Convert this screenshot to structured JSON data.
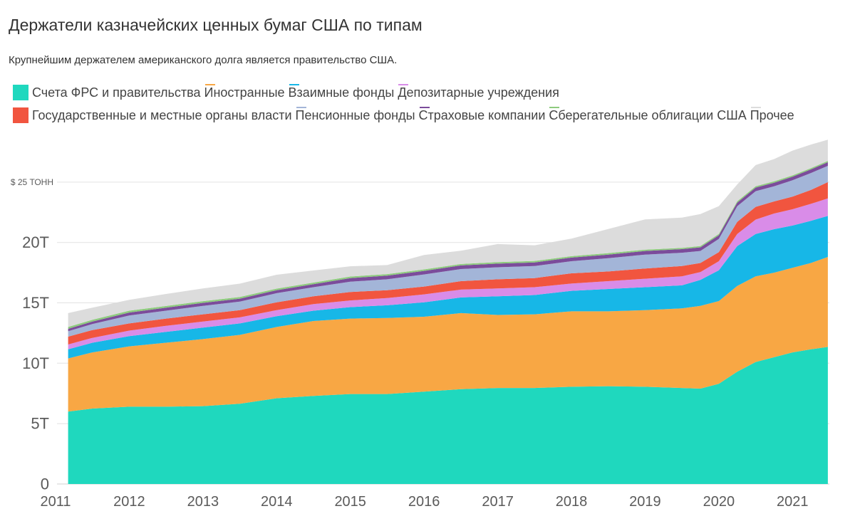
{
  "chart_data": {
    "type": "area",
    "stacked": true,
    "title": "Держатели казначейских ценных бумаг США по типам",
    "subtitle": "Крупнейшим держателем американского долга является правительство США.",
    "xlim": [
      2011,
      2021.5
    ],
    "ylim": [
      0,
      29
    ],
    "grid": true,
    "legend": "top-left",
    "x_ticks": {
      "values": [
        2011,
        2012,
        2013,
        2014,
        2015,
        2016,
        2017,
        2018,
        2019,
        2020,
        2021
      ],
      "labels": [
        "2011",
        "2012",
        "2013",
        "2014",
        "2015",
        "2016",
        "2017",
        "2018",
        "2019",
        "2020",
        "2021"
      ]
    },
    "y_ticks": {
      "values": [
        0,
        5,
        10,
        15,
        20,
        25
      ],
      "labels": [
        "0",
        "5T",
        "10T",
        "15T",
        "20T",
        "$ 25 ТОНН"
      ]
    },
    "x": [
      2011.17,
      2011.5,
      2012.0,
      2012.5,
      2013.0,
      2013.5,
      2014.0,
      2014.5,
      2015.0,
      2015.5,
      2016.0,
      2016.5,
      2017.0,
      2017.5,
      2018.0,
      2018.5,
      2019.0,
      2019.5,
      2019.75,
      2020.0,
      2020.25,
      2020.5,
      2020.75,
      2021.0,
      2021.25,
      2021.48
    ],
    "series": [
      {
        "name": "Счета ФРС и правительства",
        "color": "#1FD8BE",
        "values": [
          6.0,
          6.25,
          6.4,
          6.4,
          6.45,
          6.65,
          7.1,
          7.3,
          7.45,
          7.45,
          7.65,
          7.85,
          7.95,
          7.95,
          8.05,
          8.1,
          8.05,
          7.95,
          7.9,
          8.3,
          9.3,
          10.1,
          10.5,
          10.9,
          11.15,
          11.35
        ]
      },
      {
        "name": "Иностранные",
        "color": "#F8A744",
        "values": [
          4.4,
          4.65,
          5.0,
          5.3,
          5.55,
          5.7,
          5.9,
          6.2,
          6.25,
          6.3,
          6.2,
          6.3,
          6.05,
          6.1,
          6.25,
          6.2,
          6.35,
          6.6,
          6.85,
          6.85,
          7.1,
          7.1,
          7.0,
          7.0,
          7.15,
          7.45
        ]
      },
      {
        "name": "Взаимные фонды",
        "color": "#17B7E7",
        "values": [
          0.75,
          0.8,
          0.85,
          0.9,
          0.95,
          0.95,
          0.9,
          0.85,
          0.95,
          1.05,
          1.2,
          1.3,
          1.55,
          1.6,
          1.7,
          1.85,
          1.9,
          1.9,
          2.15,
          2.55,
          3.3,
          3.5,
          3.6,
          3.5,
          3.5,
          3.4
        ]
      },
      {
        "name": "Депозитарные учреждения",
        "color": "#D98CE8",
        "values": [
          0.4,
          0.4,
          0.45,
          0.5,
          0.5,
          0.5,
          0.5,
          0.55,
          0.55,
          0.6,
          0.65,
          0.65,
          0.65,
          0.65,
          0.6,
          0.65,
          0.7,
          0.75,
          0.65,
          0.75,
          1.0,
          1.2,
          1.3,
          1.35,
          1.4,
          1.45
        ]
      },
      {
        "name": "Государственные и местные органы власти",
        "color": "#F1553F",
        "values": [
          0.65,
          0.65,
          0.6,
          0.6,
          0.6,
          0.6,
          0.65,
          0.65,
          0.7,
          0.65,
          0.65,
          0.7,
          0.75,
          0.75,
          0.85,
          0.8,
          0.85,
          0.85,
          0.75,
          0.75,
          1.0,
          1.05,
          1.0,
          1.05,
          1.15,
          1.35
        ]
      },
      {
        "name": "Пенсионные фонды",
        "color": "#A3B5D8",
        "values": [
          0.45,
          0.5,
          0.65,
          0.65,
          0.7,
          0.7,
          0.75,
          0.75,
          0.85,
          0.9,
          1.0,
          1.0,
          1.0,
          1.0,
          1.0,
          1.1,
          1.15,
          1.1,
          1.0,
          1.1,
          1.3,
          1.3,
          1.25,
          1.35,
          1.4,
          1.35
        ]
      },
      {
        "name": "Страховые компании",
        "color": "#7B4C9B",
        "values": [
          0.2,
          0.2,
          0.25,
          0.25,
          0.25,
          0.25,
          0.25,
          0.25,
          0.3,
          0.3,
          0.3,
          0.3,
          0.3,
          0.3,
          0.3,
          0.3,
          0.3,
          0.3,
          0.3,
          0.3,
          0.3,
          0.3,
          0.3,
          0.3,
          0.3,
          0.3
        ]
      },
      {
        "name": "Сберегательные облигации США",
        "color": "#8ECB7E",
        "values": [
          0.15,
          0.15,
          0.15,
          0.14,
          0.14,
          0.14,
          0.13,
          0.13,
          0.13,
          0.13,
          0.12,
          0.12,
          0.12,
          0.12,
          0.12,
          0.12,
          0.11,
          0.11,
          0.11,
          0.11,
          0.11,
          0.11,
          0.11,
          0.11,
          0.11,
          0.11
        ]
      },
      {
        "name": "Прочее",
        "color": "#DCDCDC",
        "values": [
          1.15,
          1.0,
          0.9,
          1.0,
          1.05,
          1.1,
          1.15,
          1.0,
          0.85,
          0.75,
          1.2,
          1.1,
          1.5,
          1.3,
          1.45,
          2.0,
          2.5,
          2.5,
          2.65,
          2.3,
          1.4,
          1.75,
          1.85,
          2.05,
          1.95,
          1.75
        ]
      }
    ]
  }
}
